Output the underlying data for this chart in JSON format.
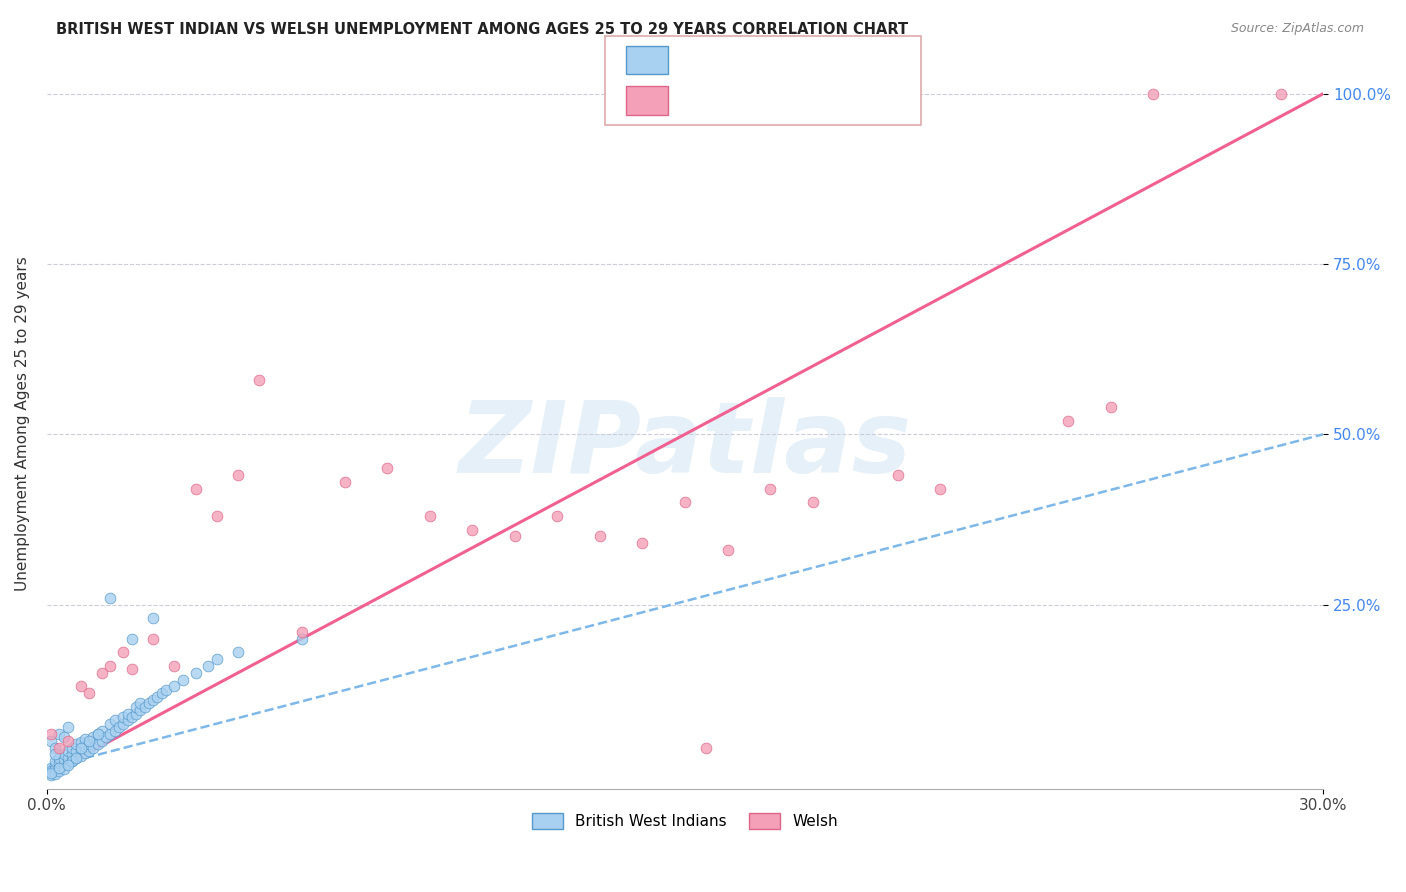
{
  "title": "BRITISH WEST INDIAN VS WELSH UNEMPLOYMENT AMONG AGES 25 TO 29 YEARS CORRELATION CHART",
  "source": "Source: ZipAtlas.com",
  "ylabel": "Unemployment Among Ages 25 to 29 years",
  "xlim": [
    0.0,
    0.3
  ],
  "ylim": [
    -0.02,
    1.05
  ],
  "color_bwi": "#A8D0F0",
  "color_welsh": "#F4A0B8",
  "color_line_bwi": "#7EB8E8",
  "color_line_welsh": "#F06090",
  "watermark": "ZIPatlas",
  "bwi_x": [
    0.001,
    0.001,
    0.002,
    0.002,
    0.002,
    0.003,
    0.003,
    0.003,
    0.004,
    0.004,
    0.004,
    0.005,
    0.005,
    0.005,
    0.006,
    0.006,
    0.006,
    0.007,
    0.007,
    0.007,
    0.008,
    0.008,
    0.008,
    0.009,
    0.009,
    0.009,
    0.01,
    0.01,
    0.011,
    0.011,
    0.012,
    0.012,
    0.013,
    0.013,
    0.014,
    0.015,
    0.015,
    0.016,
    0.016,
    0.017,
    0.018,
    0.018,
    0.019,
    0.019,
    0.02,
    0.021,
    0.021,
    0.022,
    0.022,
    0.023,
    0.024,
    0.025,
    0.026,
    0.027,
    0.028,
    0.03,
    0.032,
    0.035,
    0.038,
    0.04,
    0.001,
    0.002,
    0.003,
    0.004,
    0.005,
    0.001,
    0.002,
    0.003,
    0.004,
    0.002,
    0.015,
    0.02,
    0.025,
    0.06,
    0.045,
    0.001,
    0.003,
    0.006,
    0.005,
    0.007,
    0.008,
    0.01,
    0.012
  ],
  "bwi_y": [
    0.01,
    0.005,
    0.015,
    0.008,
    0.02,
    0.012,
    0.018,
    0.025,
    0.015,
    0.022,
    0.03,
    0.018,
    0.025,
    0.035,
    0.02,
    0.03,
    0.04,
    0.025,
    0.035,
    0.045,
    0.028,
    0.038,
    0.048,
    0.032,
    0.042,
    0.052,
    0.035,
    0.045,
    0.04,
    0.055,
    0.045,
    0.06,
    0.05,
    0.065,
    0.055,
    0.06,
    0.075,
    0.065,
    0.08,
    0.07,
    0.075,
    0.085,
    0.08,
    0.09,
    0.085,
    0.09,
    0.1,
    0.095,
    0.105,
    0.1,
    0.105,
    0.11,
    0.115,
    0.12,
    0.125,
    0.13,
    0.14,
    0.15,
    0.16,
    0.17,
    0.05,
    0.04,
    0.06,
    0.055,
    0.07,
    0.0,
    0.002,
    0.005,
    0.008,
    0.03,
    0.26,
    0.2,
    0.23,
    0.2,
    0.18,
    0.003,
    0.01,
    0.02,
    0.015,
    0.025,
    0.04,
    0.05,
    0.06
  ],
  "welsh_x": [
    0.001,
    0.003,
    0.005,
    0.008,
    0.01,
    0.013,
    0.015,
    0.018,
    0.02,
    0.025,
    0.03,
    0.035,
    0.04,
    0.045,
    0.05,
    0.06,
    0.07,
    0.08,
    0.09,
    0.1,
    0.11,
    0.12,
    0.13,
    0.14,
    0.15,
    0.16,
    0.17,
    0.18,
    0.2,
    0.21,
    0.24,
    0.25,
    0.155,
    0.26,
    0.29
  ],
  "welsh_y": [
    0.06,
    0.04,
    0.05,
    0.13,
    0.12,
    0.15,
    0.16,
    0.18,
    0.155,
    0.2,
    0.16,
    0.42,
    0.38,
    0.44,
    0.58,
    0.21,
    0.43,
    0.45,
    0.38,
    0.36,
    0.35,
    0.38,
    0.35,
    0.34,
    0.4,
    0.33,
    0.42,
    0.4,
    0.44,
    0.42,
    0.52,
    0.54,
    0.04,
    1.0,
    1.0
  ],
  "bwi_line_x": [
    0.0,
    0.3
  ],
  "bwi_line_y": [
    0.01,
    0.5
  ],
  "welsh_line_x": [
    0.0,
    0.3
  ],
  "welsh_line_y": [
    0.0,
    1.0
  ]
}
